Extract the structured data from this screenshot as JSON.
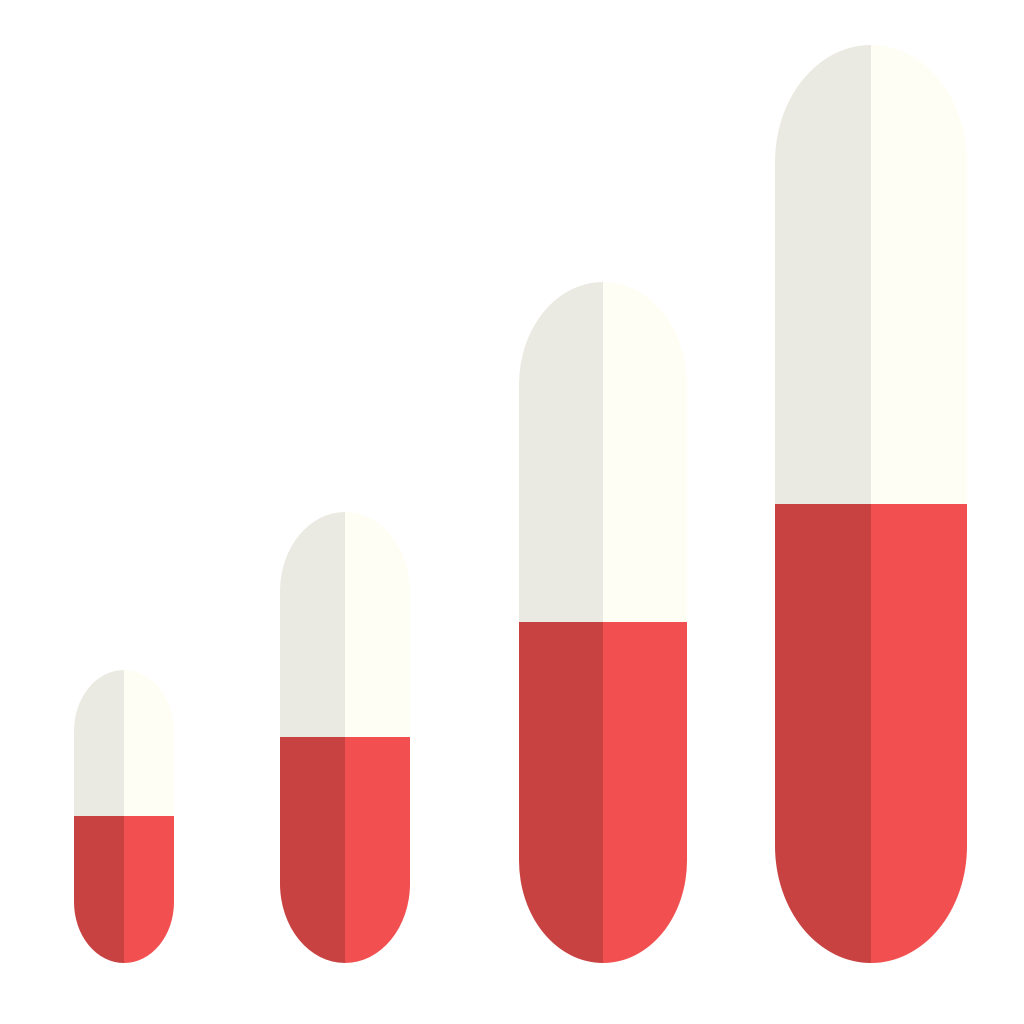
{
  "illustration": {
    "subject": "capsule-pills",
    "colors": {
      "background": "#ffffff",
      "cap_shade": "#EBEAE2",
      "cap_light": "#FFFEF5",
      "body_shade": "#C94242",
      "body_light": "#F25050"
    },
    "pills": [
      {
        "name": "pill-small"
      },
      {
        "name": "pill-medium"
      },
      {
        "name": "pill-large"
      },
      {
        "name": "pill-xlarge"
      }
    ]
  }
}
